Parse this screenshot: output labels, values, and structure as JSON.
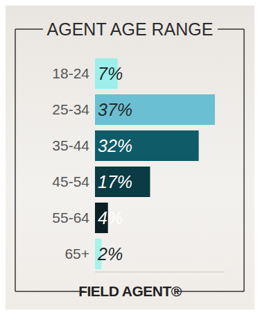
{
  "chart_data": {
    "type": "bar",
    "title": "AGENT AGE RANGE",
    "categories": [
      "18-24",
      "25-34",
      "35-44",
      "45-54",
      "55-64",
      "65+"
    ],
    "values": [
      7,
      37,
      32,
      17,
      4,
      2
    ],
    "value_labels": [
      "7%",
      "37%",
      "32%",
      "17%",
      "4%",
      "2%"
    ],
    "colors": [
      "#9cefea",
      "#6bbfd2",
      "#0f5b68",
      "#0b3b44",
      "#0c1f24",
      "#a6f3ec"
    ],
    "orientation": "horizontal",
    "data_labels": true,
    "tick_labels": "y",
    "xlim": [
      0,
      40
    ],
    "annotations": [
      "FIELD AGENT®"
    ]
  }
}
